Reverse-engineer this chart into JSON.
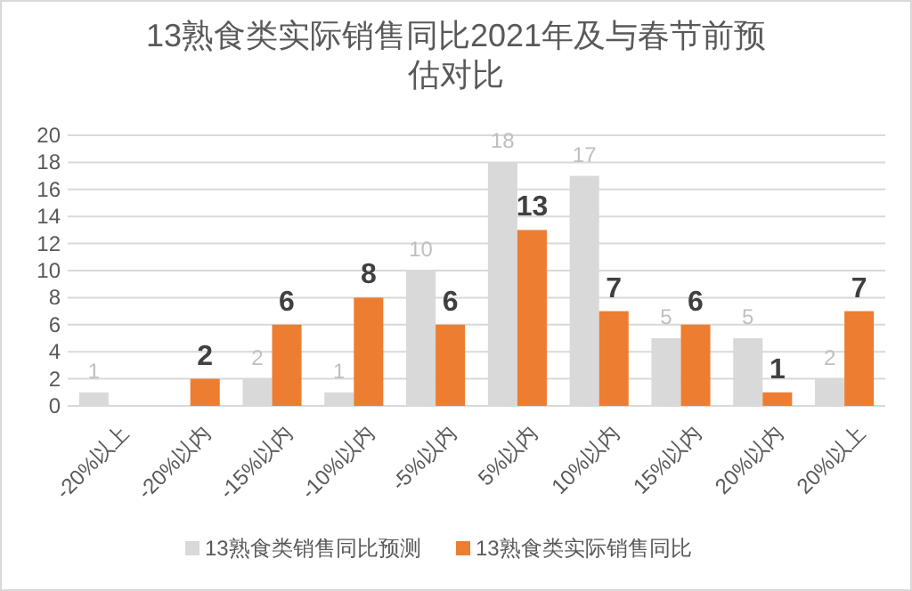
{
  "chart_data": {
    "type": "bar",
    "title": "13熟食类实际销售同比2021年及与春节前预估对比",
    "categories": [
      "-20%以上",
      "-20%以内",
      "-15%以内",
      "-10%以内",
      "-5%以内",
      "5%以内",
      "10%以内",
      "15%以内",
      "20%以内",
      "20%以上"
    ],
    "series": [
      {
        "name": "13熟食类销售同比预测",
        "color": "#d9d9d9",
        "values": [
          1,
          null,
          2,
          1,
          10,
          18,
          17,
          5,
          5,
          2
        ]
      },
      {
        "name": "13熟食类实际销售同比",
        "color": "#ed7d31",
        "values": [
          null,
          2,
          6,
          8,
          6,
          13,
          7,
          6,
          1,
          7
        ]
      }
    ],
    "ylim": [
      0,
      20
    ],
    "yticks": [
      0,
      2,
      4,
      6,
      8,
      10,
      12,
      14,
      16,
      18,
      20
    ],
    "grid": "y",
    "legend": "bottom",
    "data_labels": true
  }
}
